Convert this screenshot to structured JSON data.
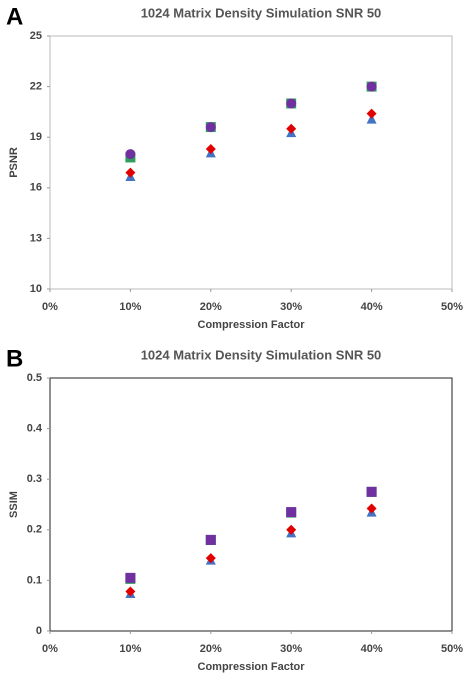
{
  "chart_data": [
    {
      "type": "scatter",
      "panel_label": "A",
      "title": "1024 Matrix Density Simulation SNR 50",
      "xlabel": "Compression Factor",
      "ylabel": "PSNR",
      "x": [
        10,
        20,
        30,
        40
      ],
      "xlim": [
        0,
        50
      ],
      "xticks": [
        {
          "value": 0,
          "label": "0%"
        },
        {
          "value": 10,
          "label": "10%"
        },
        {
          "value": 20,
          "label": "20%"
        },
        {
          "value": 30,
          "label": "30%"
        },
        {
          "value": 40,
          "label": "40%"
        },
        {
          "value": 50,
          "label": "50%"
        }
      ],
      "ylim": [
        10,
        25
      ],
      "yticks": [
        10,
        13,
        16,
        19,
        22,
        25
      ],
      "series": [
        {
          "color": "#2e9e5b",
          "marker": "square",
          "values": [
            17.8,
            19.6,
            21.0,
            22.0
          ]
        },
        {
          "color": "#7030a0",
          "marker": "circle",
          "values": [
            18.0,
            19.6,
            21.0,
            22.0
          ]
        },
        {
          "color": "#4472c4",
          "marker": "triangle",
          "values": [
            16.7,
            18.1,
            19.3,
            20.1
          ]
        },
        {
          "color": "#e00000",
          "marker": "diamond",
          "values": [
            16.9,
            18.3,
            19.5,
            20.4
          ]
        }
      ]
    },
    {
      "type": "scatter",
      "panel_label": "B",
      "title": "1024 Matrix Density Simulation SNR 50",
      "xlabel": "Compression Factor",
      "ylabel": "SSIM",
      "x": [
        10,
        20,
        30,
        40
      ],
      "xlim": [
        0,
        50
      ],
      "xticks": [
        {
          "value": 0,
          "label": "0%"
        },
        {
          "value": 10,
          "label": "10%"
        },
        {
          "value": 20,
          "label": "20%"
        },
        {
          "value": 30,
          "label": "30%"
        },
        {
          "value": 40,
          "label": "40%"
        },
        {
          "value": 50,
          "label": "50%"
        }
      ],
      "ylim": [
        0,
        0.5
      ],
      "yticks": [
        0,
        0.1,
        0.2,
        0.3,
        0.4,
        0.5
      ],
      "series": [
        {
          "color": "#2e9e5b",
          "marker": "square",
          "values": [
            0.103,
            0.18,
            0.234,
            0.275
          ]
        },
        {
          "color": "#7030a0",
          "marker": "square",
          "values": [
            0.105,
            0.18,
            0.235,
            0.275
          ]
        },
        {
          "color": "#4472c4",
          "marker": "triangle",
          "values": [
            0.075,
            0.141,
            0.195,
            0.236
          ]
        },
        {
          "color": "#e00000",
          "marker": "diamond",
          "values": [
            0.078,
            0.144,
            0.2,
            0.242
          ]
        }
      ]
    }
  ]
}
